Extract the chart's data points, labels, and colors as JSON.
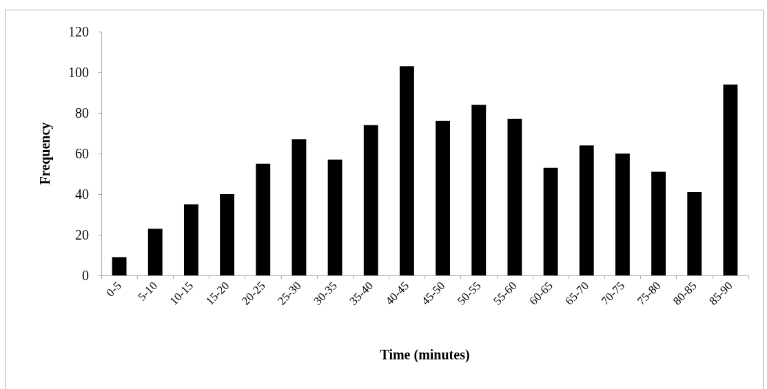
{
  "chart_data": {
    "type": "bar",
    "xlabel": "Time (minutes)",
    "ylabel": "Frequency",
    "categories": [
      "0-5",
      "5-10",
      "10-15",
      "15-20",
      "20-25",
      "25-30",
      "30-35",
      "35-40",
      "40-45",
      "45-50",
      "50-55",
      "55-60",
      "60-65",
      "65-70",
      "70-75",
      "75-80",
      "80-85",
      "85-90"
    ],
    "values": [
      9,
      23,
      35,
      40,
      55,
      67,
      57,
      74,
      103,
      76,
      84,
      77,
      53,
      64,
      60,
      51,
      41,
      94
    ],
    "color": "#000000",
    "ylim": [
      0,
      120
    ],
    "yticks": [
      0,
      20,
      40,
      60,
      80,
      100,
      120
    ],
    "grid": false
  }
}
